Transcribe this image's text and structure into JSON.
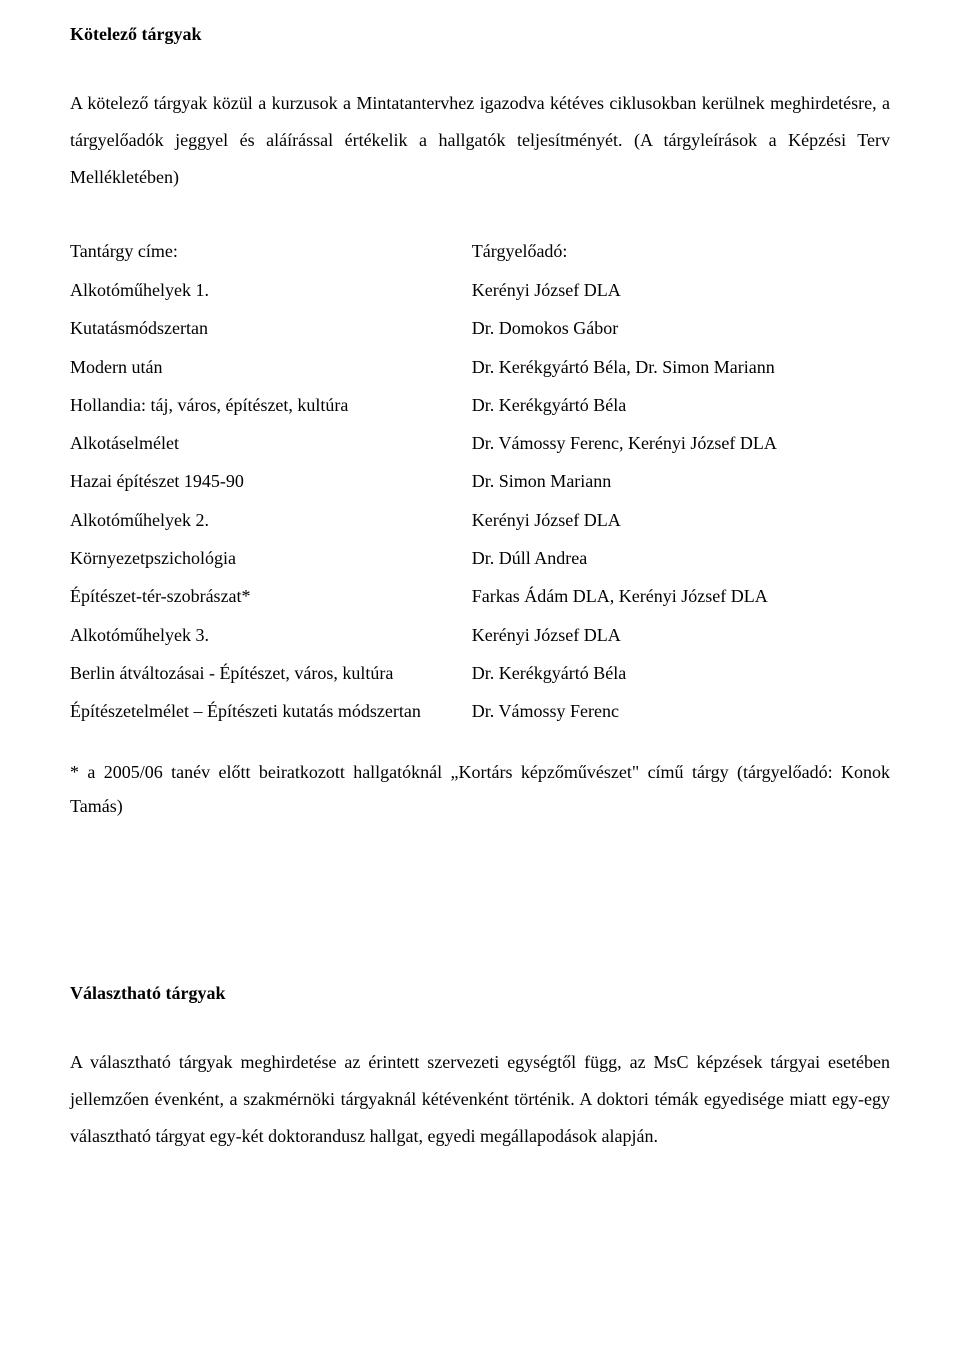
{
  "colors": {
    "background": "#ffffff",
    "text": "#000000"
  },
  "typography": {
    "font_family": "Times New Roman",
    "body_fontsize_pt": 12,
    "heading_weight": "bold",
    "line_height_body": 2.05
  },
  "section1": {
    "heading": "Kötelező tárgyak",
    "intro": "A kötelező tárgyak közül a kurzusok a Mintatantervhez igazodva kétéves ciklusokban kerülnek meghirdetésre, a tárgyelőadók jeggyel és aláírással értékelik a hallgatók teljesítményét. (A tárgyleírások a Képzési Terv Mellékletében)",
    "table": {
      "type": "table",
      "column_widths": [
        "49%",
        "51%"
      ],
      "header": {
        "col_a": "Tantárgy címe:",
        "col_b": "Tárgyelőadó:"
      },
      "rows": [
        {
          "col_a": "Alkotóműhelyek 1.",
          "col_b": "Kerényi József DLA"
        },
        {
          "col_a": "Kutatásmódszertan",
          "col_b": "Dr. Domokos Gábor"
        },
        {
          "col_a": "Modern után",
          "col_b": "Dr. Kerékgyártó Béla, Dr. Simon Mariann"
        },
        {
          "col_a": "Hollandia: táj, város, építészet, kultúra",
          "col_b": "Dr. Kerékgyártó Béla"
        },
        {
          "col_a": "Alkotáselmélet",
          "col_b": "Dr. Vámossy Ferenc, Kerényi József DLA"
        },
        {
          "col_a": "Hazai építészet 1945-90",
          "col_b": "Dr. Simon Mariann"
        },
        {
          "col_a": "Alkotóműhelyek 2.",
          "col_b": "Kerényi József DLA"
        },
        {
          "col_a": "Környezetpszichológia",
          "col_b": "Dr. Dúll Andrea"
        },
        {
          "col_a": "Építészet-tér-szobrászat*",
          "col_b": "Farkas Ádám DLA, Kerényi József DLA"
        },
        {
          "col_a": "Alkotóműhelyek 3.",
          "col_b": "Kerényi József DLA"
        },
        {
          "col_a": "Berlin átváltozásai - Építészet, város, kultúra",
          "col_b": "Dr. Kerékgyártó Béla"
        },
        {
          "col_a": "Építészetelmélet – Építészeti kutatás módszertan",
          "col_b": "Dr. Vámossy Ferenc"
        }
      ]
    },
    "footnote": "* a 2005/06 tanév előtt beiratkozott hallgatóknál „Kortárs képzőművészet\" című tárgy (tárgyelőadó: Konok Tamás)"
  },
  "section2": {
    "heading": "Választható tárgyak",
    "intro": "A választható tárgyak meghirdetése az érintett szervezeti egységtől függ, az MsC képzések tárgyai esetében jellemzően évenként, a szakmérnöki tárgyaknál kétévenként történik. A doktori témák egyedisége miatt egy-egy választható tárgyat egy-két doktorandusz hallgat, egyedi megállapodások alapján."
  }
}
